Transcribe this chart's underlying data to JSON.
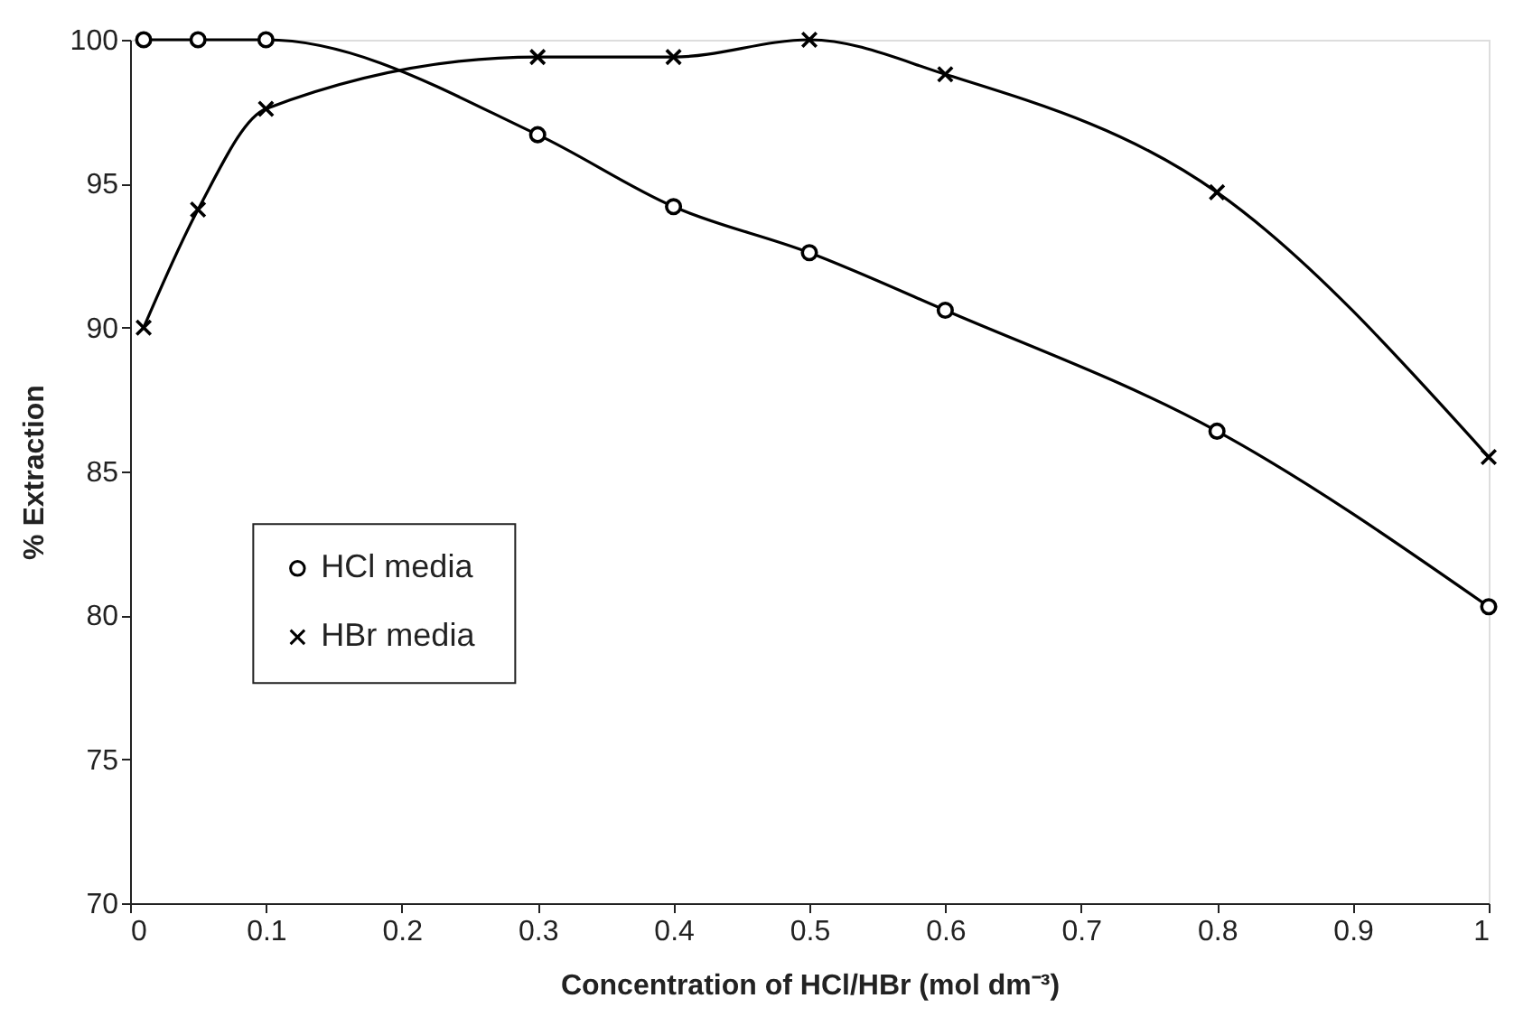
{
  "chart_data": {
    "type": "line",
    "xlabel": "Concentration of HCl/HBr (mol dm⁻³)",
    "ylabel": "% Extraction",
    "xlim": [
      0,
      1
    ],
    "xticks": [
      0,
      0.1,
      0.2,
      0.3,
      0.4,
      0.5,
      0.6,
      0.7,
      0.8,
      0.9,
      1
    ],
    "ylim": [
      70,
      100
    ],
    "yticks": [
      70,
      75,
      80,
      85,
      90,
      95,
      100
    ],
    "grid": false,
    "legend": "bottom left",
    "line_style": "solid",
    "x": [
      0.01,
      0.05,
      0.1,
      0.3,
      0.4,
      0.5,
      0.6,
      0.8,
      1.0
    ],
    "series": [
      {
        "name": "HCl  media",
        "color": "#000000",
        "marker": "circle",
        "values": [
          100,
          100,
          100,
          96.7,
          94.2,
          92.6,
          90.6,
          86.4,
          80.3
        ]
      },
      {
        "name": "HBr  media",
        "color": "#000000",
        "marker": "cross",
        "values": [
          90.0,
          94.1,
          97.6,
          99.4,
          99.4,
          100,
          98.8,
          94.7,
          85.5
        ]
      }
    ]
  }
}
